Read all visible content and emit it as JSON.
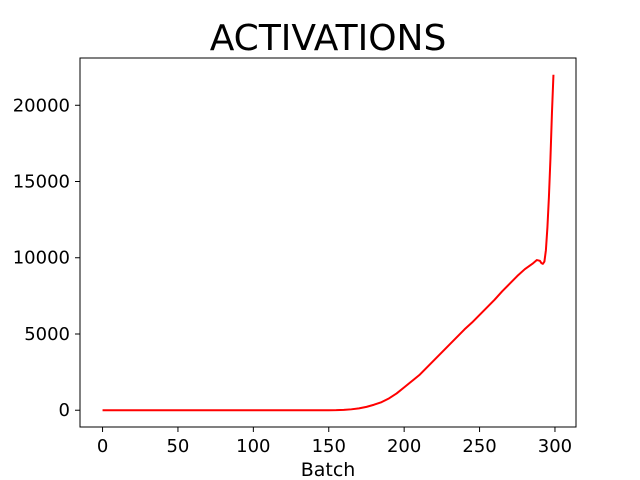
{
  "chart_data": {
    "type": "line",
    "title": "ACTIVATIONS",
    "xlabel": "Batch",
    "ylabel": "",
    "xlim": [
      -14.95,
      313.95
    ],
    "ylim": [
      -1100,
      23100
    ],
    "xticks": [
      0,
      50,
      100,
      150,
      200,
      250,
      300
    ],
    "xtick_labels": [
      "0",
      "50",
      "100",
      "150",
      "200",
      "250",
      "300"
    ],
    "yticks": [
      0,
      5000,
      10000,
      15000,
      20000
    ],
    "ytick_labels": [
      "0",
      "5000",
      "10000",
      "15000",
      "20000"
    ],
    "grid": false,
    "series": [
      {
        "color": "#ff0000",
        "x": [
          0,
          20,
          40,
          60,
          80,
          100,
          120,
          140,
          150,
          155,
          160,
          165,
          170,
          175,
          180,
          185,
          190,
          195,
          200,
          205,
          210,
          215,
          220,
          225,
          230,
          235,
          240,
          245,
          250,
          255,
          260,
          265,
          270,
          275,
          280,
          285,
          288,
          290,
          291,
          292,
          293,
          294,
          295,
          296,
          297,
          298,
          299
        ],
        "y": [
          0,
          0,
          0,
          0,
          0,
          0,
          0,
          0,
          0,
          5,
          25,
          60,
          120,
          220,
          360,
          530,
          780,
          1100,
          1500,
          1900,
          2300,
          2800,
          3300,
          3800,
          4300,
          4800,
          5300,
          5750,
          6250,
          6750,
          7250,
          7800,
          8300,
          8800,
          9250,
          9600,
          9850,
          9800,
          9650,
          9600,
          9750,
          10500,
          12000,
          14000,
          16500,
          19500,
          22000
        ]
      }
    ]
  }
}
